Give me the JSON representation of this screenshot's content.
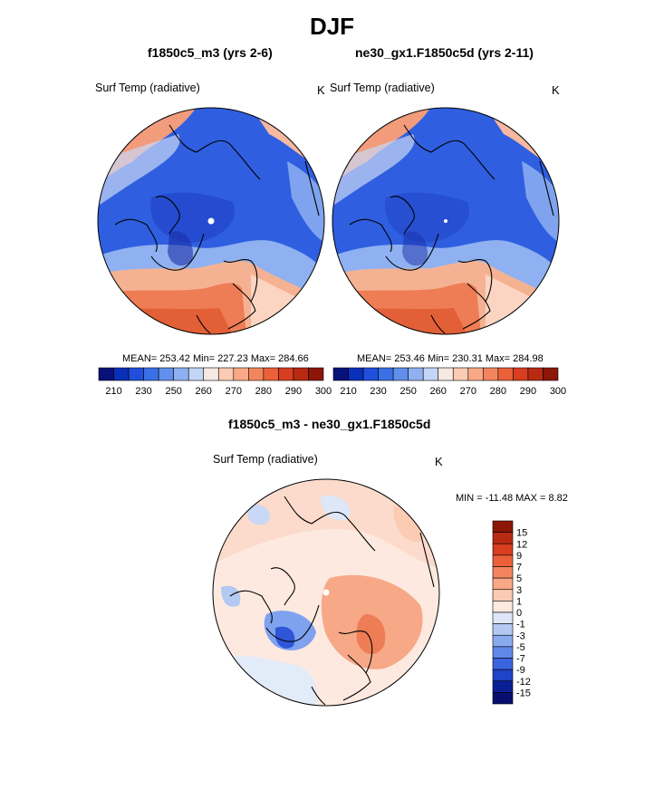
{
  "figure": {
    "title": "DJF"
  },
  "panels": [
    {
      "title": "f1850c5_m3 (yrs 2-6)",
      "variable": "Surf Temp (radiative)",
      "units": "K",
      "stats": "MEAN= 253.42  Min= 227.23  Max= 284.66"
    },
    {
      "title": "ne30_gx1.F1850c5d (yrs 2-11)",
      "variable": "Surf Temp (radiative)",
      "units": "K",
      "stats": "MEAN= 253.46  Min= 230.31  Max= 284.98"
    },
    {
      "title": "f1850c5_m3 - ne30_gx1.F1850c5d",
      "variable": "Surf Temp (radiative)",
      "units": "K",
      "stats": "MIN = -11.48 MAX =   8.82"
    }
  ],
  "colorbar_abs": {
    "labels": [
      "210",
      "230",
      "250",
      "260",
      "270",
      "280",
      "290",
      "300"
    ],
    "colors": [
      "#08107a",
      "#0a2fb8",
      "#1f4fdc",
      "#3a6fe6",
      "#6090ec",
      "#8fb1f1",
      "#c3d6f6",
      "#f6e8e2",
      "#fbcbb3",
      "#f9a985",
      "#f3855e",
      "#ea6038",
      "#d83e1f",
      "#b82a12",
      "#8c1607"
    ]
  },
  "colorbar_diff": {
    "labels": [
      "15",
      "12",
      "9",
      "7",
      "5",
      "3",
      "1",
      "0",
      "-1",
      "-3",
      "-5",
      "-7",
      "-9",
      "-12",
      "-15"
    ],
    "colors": [
      "#8c1607",
      "#b82a12",
      "#d83e1f",
      "#ea6038",
      "#f3855e",
      "#f9a985",
      "#fbcbb3",
      "#fde9df",
      "#dde7f7",
      "#b3c9f2",
      "#8aaaee",
      "#6088e8",
      "#3a64df",
      "#1f44c8",
      "#0a1f96",
      "#060f6e"
    ]
  }
}
